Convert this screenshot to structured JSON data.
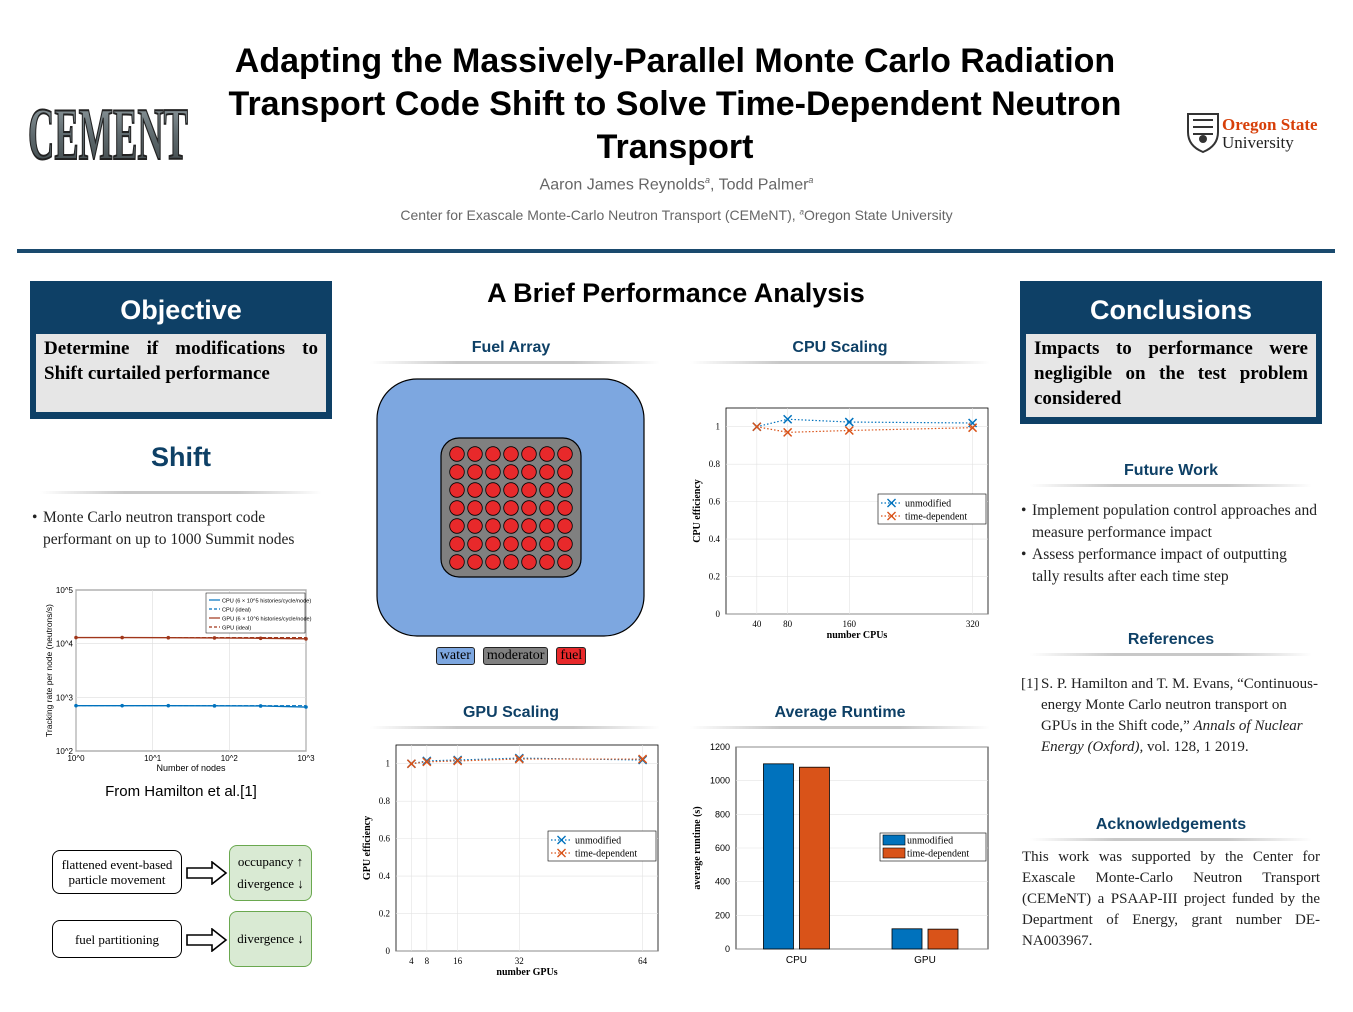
{
  "header": {
    "title_line1": "Adapting the Massively-Parallel Monte Carlo Radiation",
    "title_line2": "Transport Code Shift to Solve Time-Dependent Neutron",
    "title_line3": "Transport",
    "author1": "Aaron James Reynolds",
    "author2": "Todd Palmer",
    "affil_sup": "a",
    "affiliation1": "Center for Exascale Monte-Carlo Neutron Transport (CEMeNT), ",
    "affiliation2": "Oregon State University",
    "logo_left": "CEMENT",
    "logo_right_line1": "Oregon State",
    "logo_right_line2": "University"
  },
  "objective": {
    "heading": "Objective",
    "text": "Determine if modifications to Shift curtailed performance"
  },
  "shift": {
    "heading": "Shift",
    "bullet": "Monte Carlo neutron transport code performant on up to 1000 Summit nodes",
    "caption": "From Hamilton et al.[1]",
    "flow1_left": "flattened event-based particle movement",
    "flow1_right_a": "occupancy ↑",
    "flow1_right_b": "divergence ↓",
    "flow2_left": "fuel partitioning",
    "flow2_right": "divergence ↓"
  },
  "center": {
    "heading": "A Brief Performance Analysis",
    "fuel_title": "Fuel Array",
    "fuel_legend": [
      "water",
      "moderator",
      "fuel"
    ],
    "cpu_title": "CPU Scaling",
    "gpu_title": "GPU Scaling",
    "runtime_title": "Average Runtime"
  },
  "conclusions": {
    "heading": "Conclusions",
    "text": "Impacts to performance were negligible on the test problem considered",
    "future_heading": "Future Work",
    "future_items": [
      "Implement population control approaches and measure performance impact",
      "Assess performance impact of outputting tally results after each time step"
    ],
    "refs_heading": "References",
    "ref_num": "[1]",
    "ref_text_a": "S. P. Hamilton and T. M. Evans, “Continuous-energy Monte Carlo neutron transport on GPUs in the Shift code,”",
    "ref_journal": "Annals of Nuclear Energy (Oxford),",
    "ref_text_b": "vol. 128, 1 2019.",
    "ack_heading": "Acknowledgements",
    "ack_text": "This work was supported by the Center for Exascale Monte-Carlo Neutron Transport (CEMeNT) a PSAAP-III project funded by the Department of Energy, grant number DE-NA003967."
  },
  "colors": {
    "navy": "#0e4066",
    "blue": "#0072bd",
    "orange": "#d95319",
    "water": "#7da7e0",
    "moderator": "#808080",
    "fuel": "#e8292b"
  },
  "chart_data": [
    {
      "type": "line",
      "title": "",
      "xlabel": "Number of nodes",
      "ylabel": "Tracking rate per node (neutrons/s)",
      "xscale": "log",
      "yscale": "log",
      "xlim": [
        1,
        1000
      ],
      "ylim": [
        100,
        100000
      ],
      "xticks": [
        "10^0",
        "10^1",
        "10^2",
        "10^3"
      ],
      "yticks": [
        "10^2",
        "10^3",
        "10^4",
        "10^5"
      ],
      "x": [
        1,
        4,
        16,
        64,
        256,
        1000
      ],
      "series": [
        {
          "name": "CPU (6 × 10^5 histories/cycle/node)",
          "values": [
            700,
            700,
            700,
            695,
            690,
            660
          ]
        },
        {
          "name": "CPU (ideal)",
          "values": [
            700,
            700,
            700,
            700,
            700,
            700
          ]
        },
        {
          "name": "GPU (6 × 10^6 histories/cycle/node)",
          "values": [
            13000,
            13000,
            12900,
            12800,
            12600,
            12300
          ]
        },
        {
          "name": "GPU (ideal)",
          "values": [
            13000,
            13000,
            13000,
            13000,
            13000,
            13000
          ]
        }
      ],
      "legend": "top-right"
    },
    {
      "type": "line",
      "title": "CPU Scaling",
      "xlabel": "number CPUs",
      "ylabel": "CPU efficiency",
      "x": [
        40,
        80,
        160,
        320
      ],
      "xticks": [
        40,
        80,
        160,
        320
      ],
      "xlim": [
        0,
        340
      ],
      "ylim": [
        0,
        1.1
      ],
      "yticks": [
        0,
        0.2,
        0.4,
        0.6,
        0.8,
        1
      ],
      "series": [
        {
          "name": "unmodified",
          "values": [
            1.0,
            1.04,
            1.025,
            1.02
          ]
        },
        {
          "name": "time-dependent",
          "values": [
            1.0,
            0.97,
            0.98,
            0.995
          ]
        }
      ],
      "legend": "right"
    },
    {
      "type": "line",
      "title": "GPU Scaling",
      "xlabel": "number GPUs",
      "ylabel": "GPU efficiency",
      "x": [
        4,
        8,
        16,
        32,
        64
      ],
      "xticks": [
        4,
        8,
        16,
        32,
        64
      ],
      "xlim": [
        0,
        68
      ],
      "ylim": [
        0,
        1.1
      ],
      "yticks": [
        0,
        0.2,
        0.4,
        0.6,
        0.8,
        1
      ],
      "series": [
        {
          "name": "unmodified",
          "values": [
            1.0,
            1.015,
            1.02,
            1.03,
            1.02
          ]
        },
        {
          "name": "time-dependent",
          "values": [
            1.0,
            1.01,
            1.015,
            1.025,
            1.025
          ]
        }
      ],
      "legend": "right"
    },
    {
      "type": "bar",
      "title": "Average Runtime",
      "xlabel": "",
      "ylabel": "average runtime (s)",
      "categories": [
        "CPU",
        "GPU"
      ],
      "ylim": [
        0,
        1200
      ],
      "yticks": [
        0,
        200,
        400,
        600,
        800,
        1000,
        1200
      ],
      "series": [
        {
          "name": "unmodified",
          "values": [
            1100,
            120
          ]
        },
        {
          "name": "time-dependent",
          "values": [
            1080,
            118
          ]
        }
      ],
      "legend": "right"
    }
  ]
}
